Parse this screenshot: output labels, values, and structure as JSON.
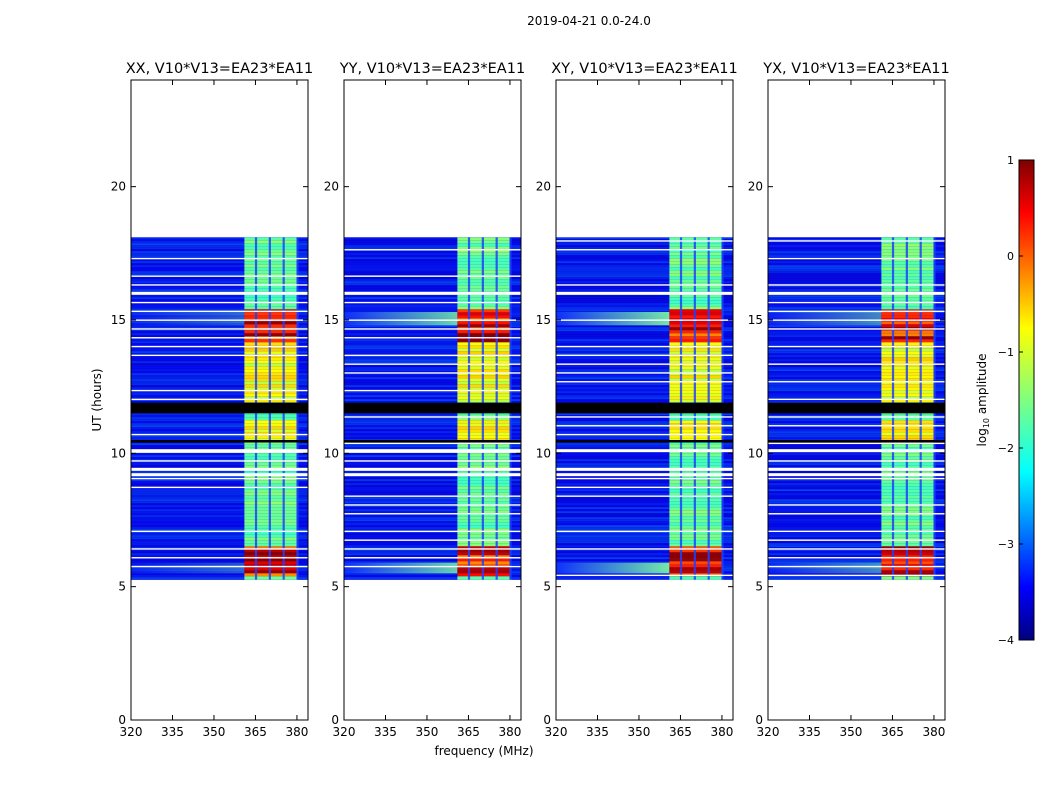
{
  "figure": {
    "suptitle": "2019-04-21 0.0-24.0"
  },
  "chart_data": {
    "type": "heatmap",
    "panels": [
      {
        "title": "XX, V10*V13=EA23*EA11"
      },
      {
        "title": "YY, V10*V13=EA23*EA11"
      },
      {
        "title": "XY, V10*V13=EA23*EA11"
      },
      {
        "title": "YX, V10*V13=EA23*EA11"
      }
    ],
    "xlabel": "frequency (MHz)",
    "ylabel": "UT (hours)",
    "xlim": [
      320,
      384
    ],
    "ylim": [
      0,
      24
    ],
    "xticks": [
      320,
      335,
      350,
      365,
      380
    ],
    "yticks": [
      0,
      5,
      10,
      15,
      20
    ],
    "data_extent_hours": [
      5.1,
      18.1
    ],
    "bright_band_mhz": [
      361,
      380
    ],
    "bright_channels_mhz": [
      363,
      368,
      373,
      378
    ],
    "blank_rows_hours": [
      5.1,
      5.2,
      9.2,
      9.4,
      10.1,
      16.0
    ],
    "dark_band_hours": [
      11.5,
      11.9
    ],
    "colorbar": {
      "label": "log10 amplitude",
      "label_parts": {
        "base": "log",
        "sub": "10",
        "rest": " amplitude"
      },
      "min": -4,
      "max": 1,
      "ticks": [
        -4,
        -3,
        -2,
        -1,
        0,
        1
      ],
      "colormap": "jet"
    }
  }
}
